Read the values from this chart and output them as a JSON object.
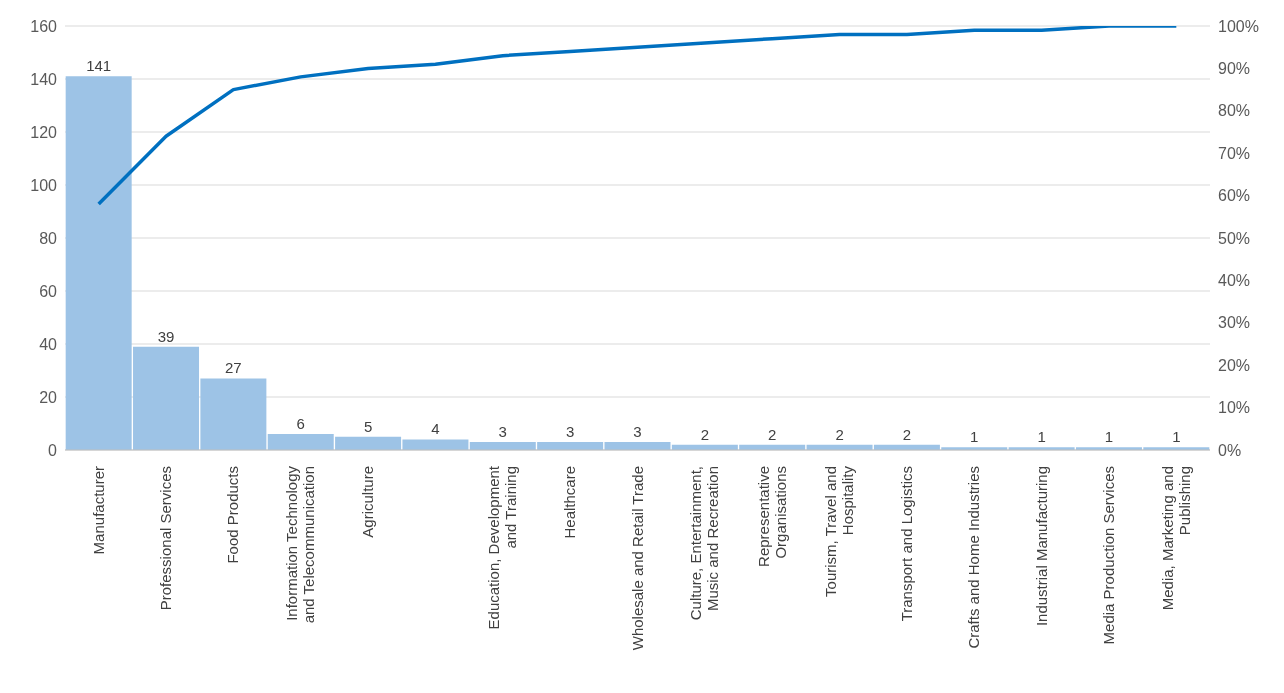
{
  "chart_data": {
    "type": "bar",
    "categories": [
      "Manufacturer",
      "Professional Services",
      "Food Products",
      "Information Technology and Telecommunication",
      "Agriculture",
      null,
      "Education, Development and Training",
      "Healthcare",
      "Wholesale and Retail Trade",
      "Culture, Entertainment, Music and Recreation",
      "Representative Organisations",
      "Tourism, Travel and Hospitality",
      "Transport and Logistics",
      "Crafts and Home Industries",
      "Industrial Manufacturing",
      "Media Production Services",
      "Media, Marketing and Publishing"
    ],
    "series": [
      {
        "color": "#9dc3e6",
        "values": [
          141,
          39,
          27,
          6,
          5,
          4,
          3,
          3,
          3,
          2,
          2,
          2,
          2,
          1,
          1,
          1,
          1
        ],
        "value_labels": [
          "141",
          "39",
          "27",
          "6",
          "5",
          "4",
          "3",
          "3",
          "3",
          "2",
          "2",
          "2",
          "2",
          "1",
          "1",
          "1",
          "1"
        ]
      },
      {
        "type": "line",
        "axis": "y2",
        "color": "#0070c0",
        "values": [
          58,
          74,
          85,
          88,
          90,
          91,
          93,
          94,
          95,
          96,
          97,
          98,
          98,
          99,
          99,
          100,
          100
        ]
      }
    ],
    "ylim": [
      0,
      160
    ],
    "yticks": [
      0,
      20,
      40,
      60,
      80,
      100,
      120,
      140,
      160
    ],
    "y2lim": [
      0,
      100
    ],
    "y2ticks": [
      {
        "value": 0,
        "label": "0%"
      },
      {
        "value": 10,
        "label": "10%"
      },
      {
        "value": 20,
        "label": "20%"
      },
      {
        "value": 30,
        "label": "30%"
      },
      {
        "value": 40,
        "label": "40%"
      },
      {
        "value": 50,
        "label": "50%"
      },
      {
        "value": 60,
        "label": "60%"
      },
      {
        "value": 70,
        "label": "70%"
      },
      {
        "value": 80,
        "label": "80%"
      },
      {
        "value": 90,
        "label": "90%"
      },
      {
        "value": 100,
        "label": "100%"
      }
    ],
    "grid": "y",
    "legend": false,
    "marker": "none"
  }
}
